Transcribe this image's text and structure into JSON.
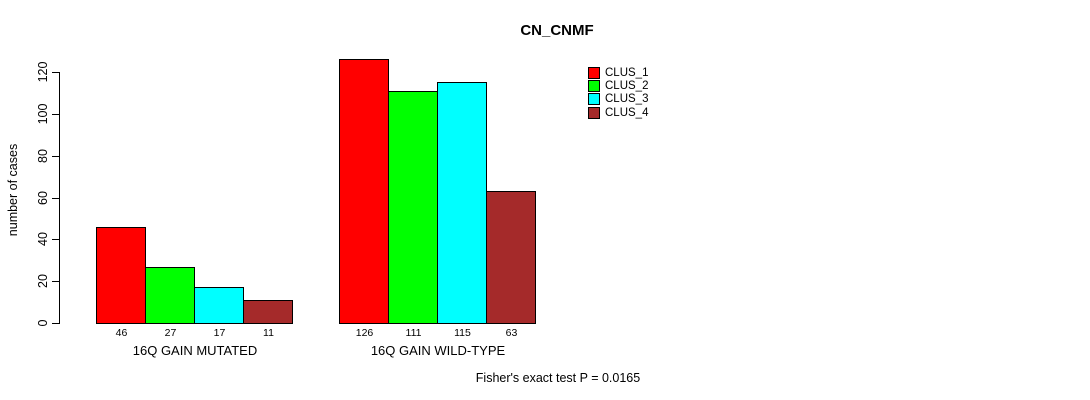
{
  "chart_data": {
    "type": "bar",
    "title": "CN_CNMF",
    "ylabel": "number of cases",
    "xlabel": "",
    "annotation": "Fisher's exact test P = 0.0165",
    "categories": [
      "16Q GAIN MUTATED",
      "16Q GAIN WILD-TYPE"
    ],
    "series": [
      {
        "name": "CLUS_1",
        "color": "#ff0000",
        "values": [
          46,
          126
        ]
      },
      {
        "name": "CLUS_2",
        "color": "#00ff00",
        "values": [
          27,
          111
        ]
      },
      {
        "name": "CLUS_3",
        "color": "#00ffff",
        "values": [
          17,
          115
        ]
      },
      {
        "name": "CLUS_4",
        "color": "#a52a2a",
        "values": [
          11,
          63
        ]
      }
    ],
    "yticks": [
      0,
      20,
      40,
      60,
      80,
      100,
      120
    ],
    "ylim": [
      0,
      130
    ],
    "grid": false,
    "show_values_under_bars": true,
    "legend_position": "top-right",
    "legend_entries": [
      "CLUS_1",
      "CLUS_2",
      "CLUS_3",
      "CLUS_4"
    ]
  }
}
